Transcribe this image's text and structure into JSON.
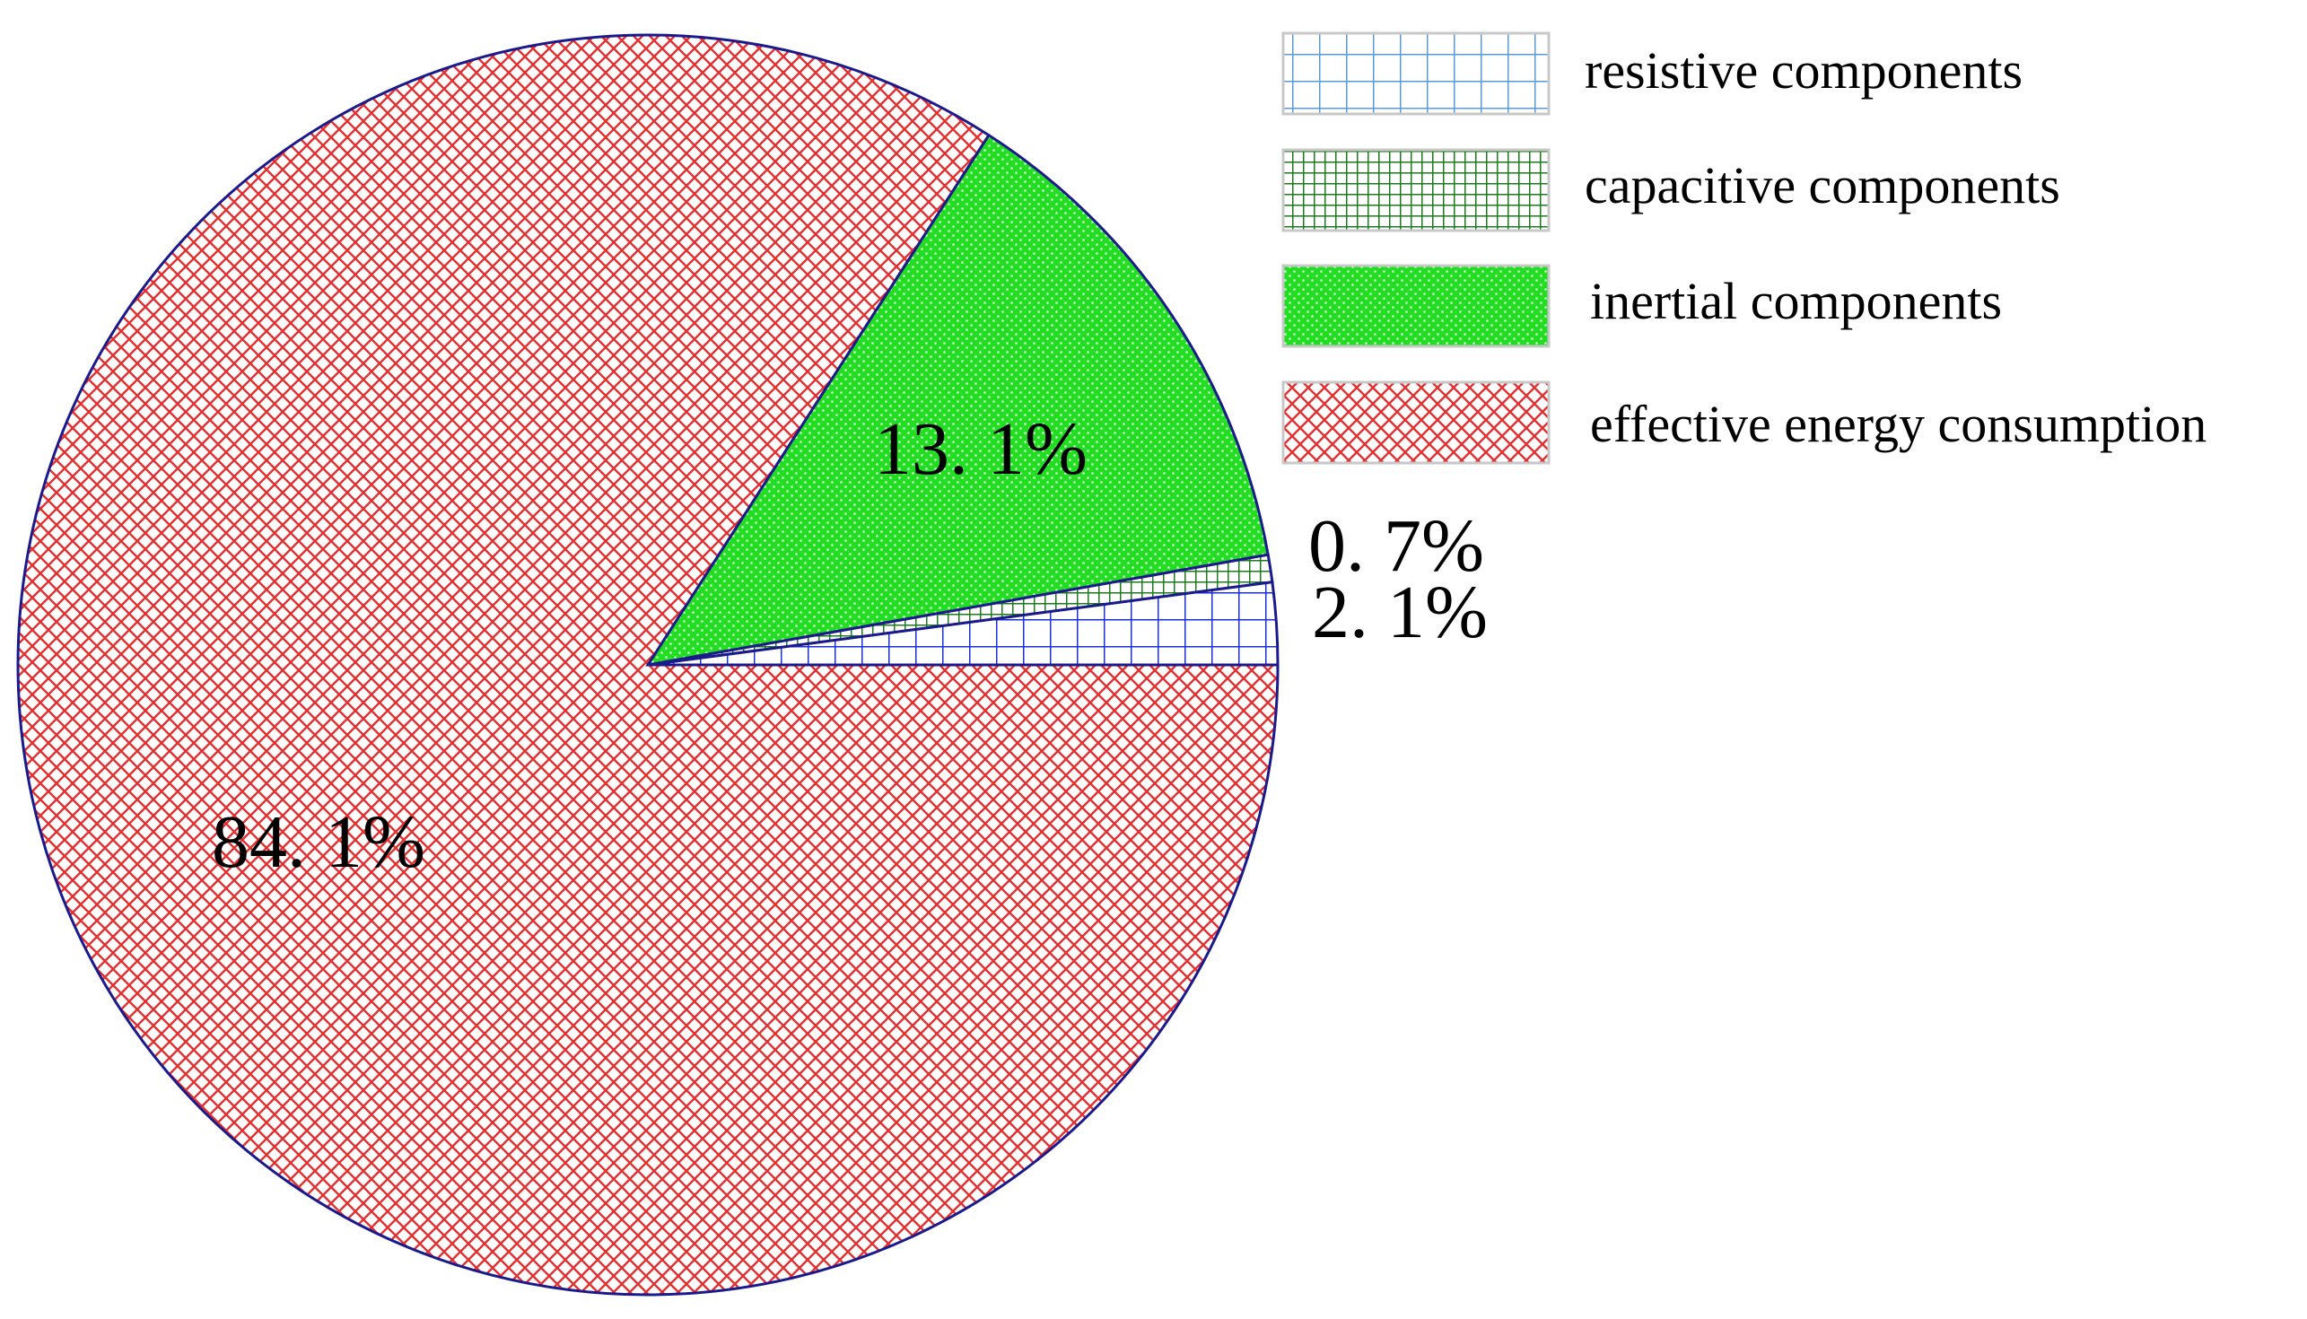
{
  "chart_data": {
    "type": "pie",
    "title": "",
    "start": "3 o'clock",
    "direction": "counterclockwise",
    "slices": [
      {
        "name": "resistive components",
        "value": 2.1,
        "label": "2. 1%",
        "color": "#1a2fd6",
        "pattern": "grid"
      },
      {
        "name": "capacitive components",
        "value": 0.7,
        "label": "0. 7%",
        "color": "#1e7a1e",
        "pattern": "fine-grid"
      },
      {
        "name": "inertial components",
        "value": 13.1,
        "label": "13. 1%",
        "color": "#22dd22",
        "pattern": "dots"
      },
      {
        "name": "effective energy consumption",
        "value": 84.1,
        "label": "84. 1%",
        "color": "#e33030",
        "pattern": "crosshatch"
      }
    ],
    "legend": {
      "placement": "top-right",
      "entries": [
        "resistive components",
        "capacitive components",
        "inertial components",
        "effective energy consumption"
      ]
    }
  }
}
